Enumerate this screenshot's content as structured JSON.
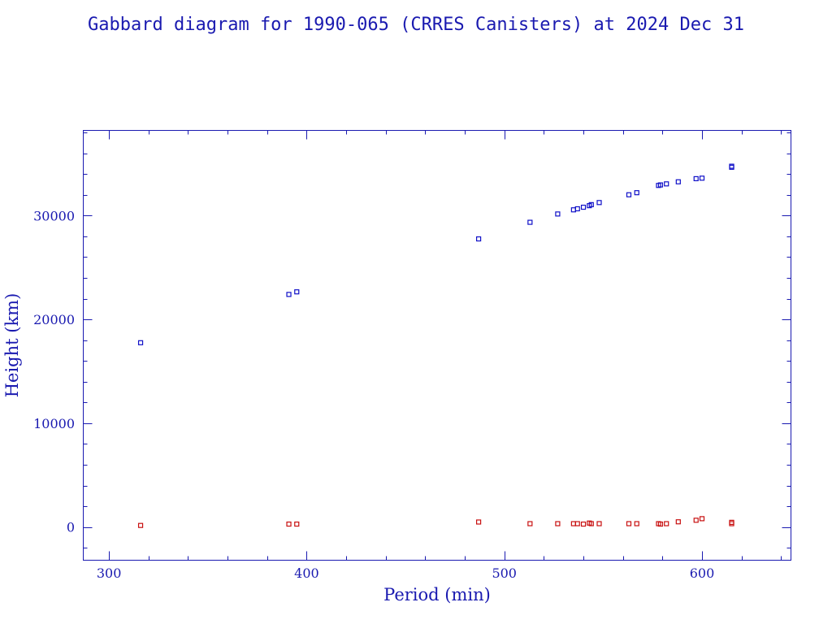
{
  "chart_data": {
    "type": "scatter",
    "title": "Gabbard diagram for 1990-065 (CRRES Canisters) at 2024 Dec 31",
    "xlabel": "Period (min)",
    "ylabel": "Height (km)",
    "xlim": [
      287,
      645
    ],
    "ylim": [
      -3200,
      38200
    ],
    "x_ticks": [
      300,
      400,
      500,
      600
    ],
    "y_ticks": [
      0,
      10000,
      20000,
      30000
    ],
    "x_minor_step": 20,
    "y_minor_step": 2000,
    "grid": false,
    "legend": "none",
    "series": [
      {
        "color": "#1010c8",
        "points": [
          [
            316,
            17750
          ],
          [
            391,
            22400
          ],
          [
            395,
            22650
          ],
          [
            487,
            27750
          ],
          [
            513,
            29350
          ],
          [
            527,
            30150
          ],
          [
            535,
            30550
          ],
          [
            537,
            30650
          ],
          [
            540,
            30800
          ],
          [
            543,
            30950
          ],
          [
            544,
            31050
          ],
          [
            548,
            31250
          ],
          [
            563,
            32000
          ],
          [
            567,
            32200
          ],
          [
            578,
            32900
          ],
          [
            579,
            32950
          ],
          [
            582,
            33050
          ],
          [
            588,
            33250
          ],
          [
            597,
            33550
          ],
          [
            600,
            33600
          ],
          [
            615,
            34650
          ],
          [
            615,
            34750
          ]
        ]
      },
      {
        "color": "#c81010",
        "points": [
          [
            316,
            150
          ],
          [
            391,
            280
          ],
          [
            395,
            280
          ],
          [
            487,
            480
          ],
          [
            513,
            320
          ],
          [
            527,
            320
          ],
          [
            535,
            320
          ],
          [
            537,
            320
          ],
          [
            540,
            280
          ],
          [
            543,
            380
          ],
          [
            544,
            320
          ],
          [
            548,
            320
          ],
          [
            563,
            320
          ],
          [
            567,
            320
          ],
          [
            578,
            320
          ],
          [
            579,
            280
          ],
          [
            582,
            320
          ],
          [
            588,
            500
          ],
          [
            597,
            650
          ],
          [
            600,
            800
          ],
          [
            615,
            320
          ],
          [
            615,
            450
          ]
        ]
      }
    ]
  }
}
